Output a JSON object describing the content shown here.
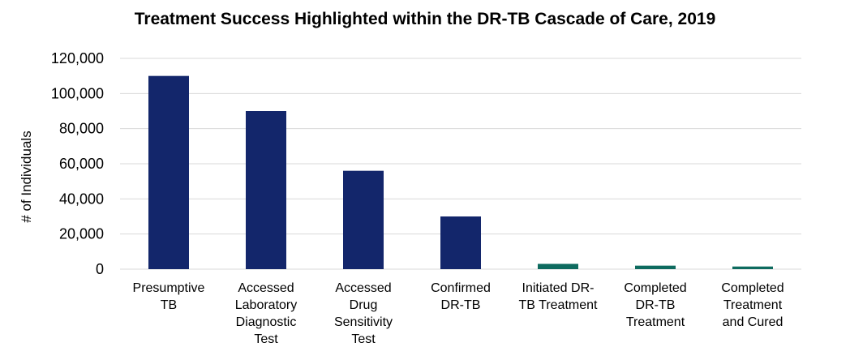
{
  "chart_data": {
    "type": "bar",
    "title": "Treatment Success Highlighted within the DR-TB Cascade of Care, 2019",
    "xlabel": "",
    "ylabel": "# of Individuals",
    "ylim": [
      0,
      120000
    ],
    "yticks": [
      0,
      20000,
      40000,
      60000,
      80000,
      100000,
      120000
    ],
    "ytick_labels": [
      "0",
      "20,000",
      "40,000",
      "60,000",
      "80,000",
      "100,000",
      "120,000"
    ],
    "grid": true,
    "legend": "none",
    "categories": [
      [
        "Presumptive",
        "TB"
      ],
      [
        "Accessed",
        "Laboratory",
        "Diagnostic",
        "Test"
      ],
      [
        "Accessed",
        "Drug",
        "Sensitivity",
        "Test"
      ],
      [
        "Confirmed",
        "DR-TB"
      ],
      [
        "Initiated DR-",
        "TB Treatment"
      ],
      [
        "Completed",
        "DR-TB",
        "Treatment"
      ],
      [
        "Completed",
        "Treatment",
        "and Cured"
      ]
    ],
    "values": [
      110000,
      90000,
      56000,
      30000,
      3000,
      2000,
      1500
    ],
    "bar_colors": [
      "#13266b",
      "#13266b",
      "#13266b",
      "#13266b",
      "#0e6b5f",
      "#0e6b5f",
      "#0e6b5f"
    ]
  }
}
